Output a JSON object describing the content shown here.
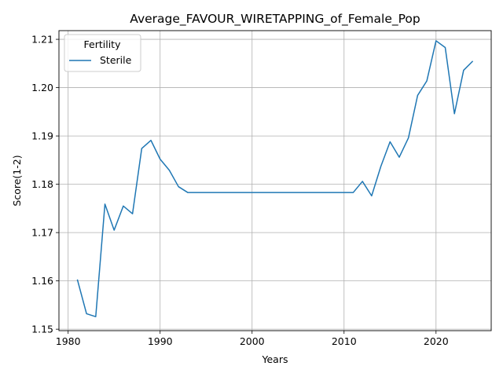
{
  "chart_data": {
    "type": "line",
    "title": "Average_FAVOUR_WIRETAPPING_of_Female_Pop",
    "xlabel": "Years",
    "ylabel": "Score(1-2)",
    "xlim": [
      1979,
      2026
    ],
    "ylim": [
      1.1497,
      1.2118
    ],
    "x_ticks": [
      1980,
      1990,
      2000,
      2010,
      2020
    ],
    "y_ticks": [
      1.15,
      1.16,
      1.17,
      1.18,
      1.19,
      1.2,
      1.21
    ],
    "grid": true,
    "legend": {
      "title": "Fertility",
      "position": "top-left"
    },
    "series": [
      {
        "name": "Sterile",
        "color": "#1f77b4",
        "x": [
          1981,
          1982,
          1983,
          1984,
          1985,
          1986,
          1987,
          1988,
          1989,
          1990,
          1991,
          1992,
          1993,
          1994,
          1995,
          1996,
          1997,
          1998,
          1999,
          2000,
          2001,
          2002,
          2003,
          2004,
          2005,
          2006,
          2007,
          2008,
          2009,
          2010,
          2011,
          2012,
          2013,
          2014,
          2015,
          2016,
          2017,
          2018,
          2019,
          2020,
          2021,
          2022,
          2023,
          2024
        ],
        "y": [
          1.1603,
          1.1532,
          1.1526,
          1.1759,
          1.1705,
          1.1755,
          1.1739,
          1.1874,
          1.1891,
          1.1852,
          1.1829,
          1.1795,
          1.1783,
          1.1783,
          1.1783,
          1.1783,
          1.1783,
          1.1783,
          1.1783,
          1.1783,
          1.1783,
          1.1783,
          1.1783,
          1.1783,
          1.1783,
          1.1783,
          1.1783,
          1.1783,
          1.1783,
          1.1783,
          1.1783,
          1.1806,
          1.1776,
          1.1837,
          1.1888,
          1.1856,
          1.1896,
          1.1984,
          1.2014,
          1.2097,
          1.2083,
          1.1946,
          1.2036,
          1.2055
        ]
      }
    ]
  }
}
